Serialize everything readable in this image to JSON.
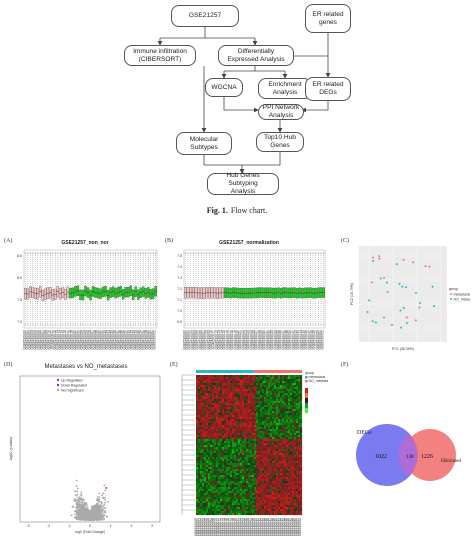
{
  "flowchart": {
    "nodes": {
      "gse": "GSE21257",
      "er_genes": "ER related\ngenes",
      "immune": "Immune infiltration\n(CIBERSORT)",
      "deg": "Differentially\nExpressed Analysis",
      "wgcna": "WGCNA",
      "enrich": "Enrichment\nAnalysis",
      "er_degs": "ER related\nDEGs",
      "ppi": "PPI Network\nAnalysis",
      "molecular": "Molecular\nSubtypes",
      "top10": "Top10 Hub\nGenes",
      "subtyping": "Hub Genes Subtyping\nAnalysis"
    },
    "caption_label": "Fig. 1.",
    "caption_text": "Flow chart."
  },
  "panels": {
    "a": {
      "label": "(A)",
      "title": "GSE21257_non_nor",
      "y_ticks": [
        "8.5",
        "8.0",
        "7.5",
        "7.0"
      ]
    },
    "b": {
      "label": "(B)",
      "title": "GSE21257_normalization",
      "y_ticks": [
        "7.5",
        "7.4",
        "7.3",
        "7.2",
        "7.1",
        "7.0",
        "6.9"
      ]
    },
    "c": {
      "label": "(C)",
      "xlabel": "PC1 (36.39%)",
      "ylabel": "PC2 (16.79%)",
      "legend_title": "group",
      "legend_items": [
        "metastasis",
        "NO_metastasis"
      ]
    },
    "d": {
      "label": "(D)",
      "title": "Metastases vs NO_metastases",
      "xlabel": "log2 (Fold Change)",
      "ylabel": "-log10 (p-value)",
      "legend": [
        "Up Regulated",
        "Down Regulated",
        "Not Significant"
      ],
      "x_ticks": [
        "-3",
        "-2",
        "-1",
        "0",
        "1",
        "2",
        "3"
      ]
    },
    "e": {
      "label": "(E)",
      "legend_title": "group",
      "legend_items": [
        "metastasis",
        "NO_metastasis"
      ]
    },
    "f": {
      "label": "(F)",
      "left_label": "DEGs",
      "right_label": "ERrelated",
      "left_count": "1022",
      "overlap_count": "138",
      "right_count": "1226"
    }
  },
  "colors": {
    "boxplot_a": "#f2c4c4",
    "boxplot_b": "#22cc22",
    "up": "#e31a1c",
    "down": "#1f3fd6",
    "ns": "#aaaaaa",
    "venn_left": "#6b6bf0",
    "venn_right": "#f26b6b"
  }
}
